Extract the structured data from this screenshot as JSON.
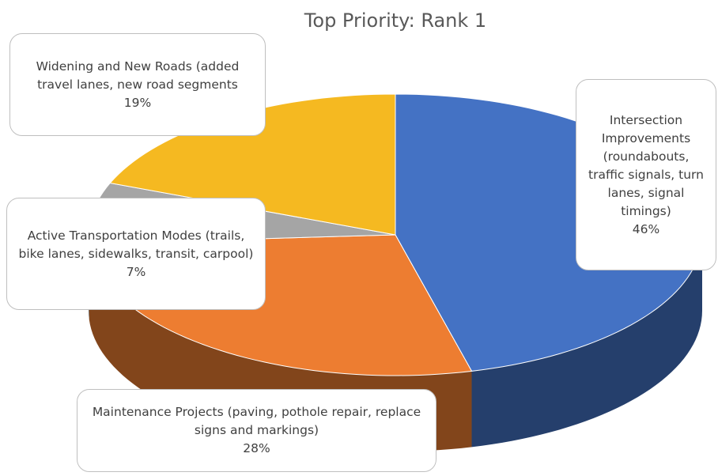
{
  "chart_data": {
    "type": "pie3d",
    "title": "Top Priority: Rank 1",
    "categories": [
      "Intersection Improvements (roundabouts, traffic signals, turn lanes, signal timings)",
      "Maintenance Projects (paving, pothole repair, replace signs and markings)",
      "Active Transportation Modes (trails, bike lanes, sidewalks, transit, carpool)",
      "Widening and New Roads (added travel lanes, new road segments"
    ],
    "values": [
      46,
      28,
      7,
      19
    ],
    "value_labels": [
      "46%",
      "28%",
      "7%",
      "19%"
    ],
    "colors": [
      "#4472c4",
      "#ed7d31",
      "#a5a5a5",
      "#f5b921"
    ]
  }
}
